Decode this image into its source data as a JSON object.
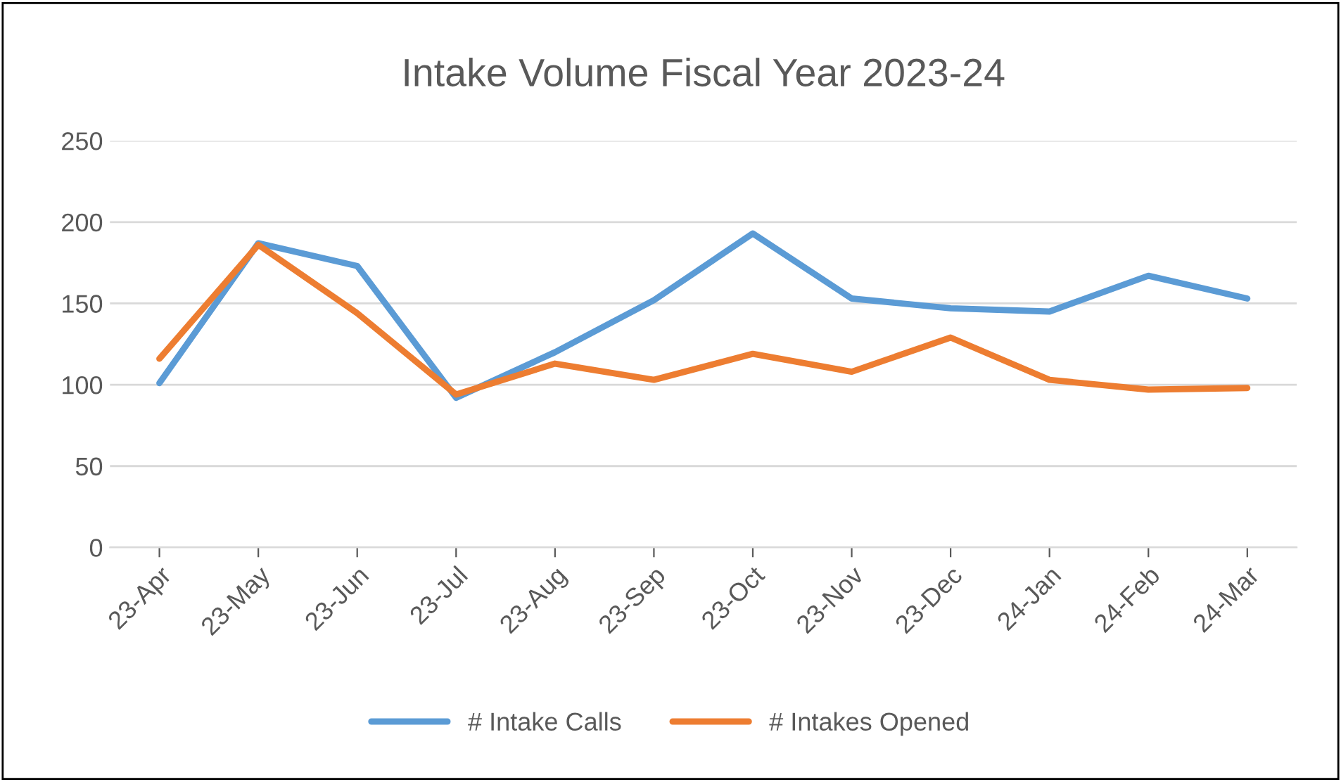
{
  "chart_data": {
    "type": "line",
    "title": "Intake Volume Fiscal Year 2023-24",
    "categories": [
      "23-Apr",
      "23-May",
      "23-Jun",
      "23-Jul",
      "23-Aug",
      "23-Sep",
      "23-Oct",
      "23-Nov",
      "23-Dec",
      "24-Jan",
      "24-Feb",
      "24-Mar"
    ],
    "series": [
      {
        "name": "# Intake Calls",
        "color": "#5b9bd5",
        "values": [
          101,
          187,
          173,
          92,
          120,
          152,
          193,
          153,
          147,
          145,
          167,
          153
        ]
      },
      {
        "name": "# Intakes Opened",
        "color": "#ed7d31",
        "values": [
          116,
          186,
          144,
          94,
          113,
          103,
          119,
          108,
          129,
          103,
          97,
          98
        ]
      }
    ],
    "ylim": [
      0,
      250
    ],
    "yticks": [
      0,
      50,
      100,
      150,
      200,
      250
    ],
    "grid": "y",
    "legend": "bottom",
    "marker": "none",
    "line_style": "solid"
  }
}
